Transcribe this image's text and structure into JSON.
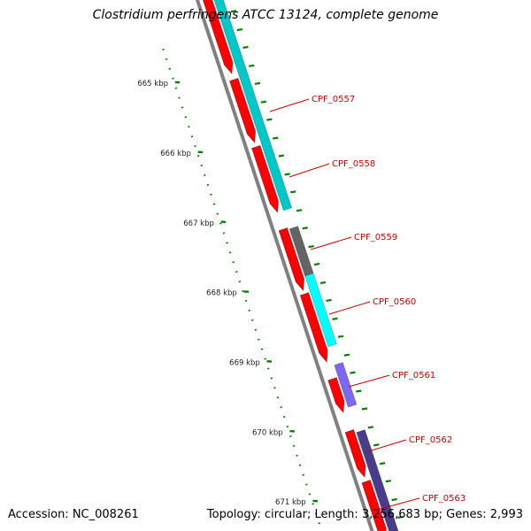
{
  "title": "Clostridium perfringens ATCC 13124, complete genome",
  "accession_text": "Accession: NC_008261",
  "summary_text": "Topology: circular; Length: 3,256,683 bp; Genes: 2,993",
  "ruler_ticks": [
    "665 kbp",
    "666 kbp",
    "667 kbp",
    "668 kbp",
    "669 kbp",
    "670 kbp",
    "671 kbp"
  ],
  "gene_labels": [
    "CPF_0557",
    "CPF_0558",
    "CPF_0559",
    "CPF_0560",
    "CPF_0561",
    "CPF_0562",
    "CPF_0563"
  ],
  "colors": {
    "red_track": "#ff0000",
    "cyan": "#00c8c8",
    "bright_cyan": "#00ffff",
    "gray": "#646464",
    "light_purple": "#7b68ee",
    "dark_purple": "#483d8b",
    "ruler": "#008000",
    "backbone": "#808080",
    "label": "#c80000"
  }
}
